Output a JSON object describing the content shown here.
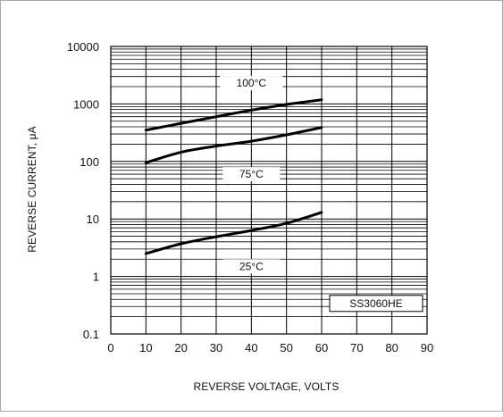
{
  "chart_data": {
    "type": "line",
    "xlabel": "REVERSE VOLTAGE, VOLTS",
    "ylabel": "REVERSE CURRENT, μA",
    "xlim": [
      0,
      90
    ],
    "ylim": [
      0.1,
      10000
    ],
    "yscale": "log",
    "grid": true,
    "x_ticks": [
      "0",
      "10",
      "20",
      "30",
      "40",
      "50",
      "60",
      "70",
      "80",
      "90"
    ],
    "y_ticks": [
      "0.1",
      "1",
      "10",
      "100",
      "1000",
      "10000"
    ],
    "model_label": "SS3060HE",
    "series": [
      {
        "name": "100°C",
        "points": [
          [
            10,
            350
          ],
          [
            20,
            460
          ],
          [
            30,
            600
          ],
          [
            40,
            780
          ],
          [
            50,
            980
          ],
          [
            60,
            1180
          ]
        ]
      },
      {
        "name": "75°C",
        "points": [
          [
            10,
            95
          ],
          [
            20,
            145
          ],
          [
            30,
            185
          ],
          [
            40,
            225
          ],
          [
            50,
            290
          ],
          [
            60,
            390
          ]
        ]
      },
      {
        "name": "25°C",
        "points": [
          [
            10,
            2.5
          ],
          [
            20,
            3.7
          ],
          [
            30,
            4.9
          ],
          [
            40,
            6.3
          ],
          [
            50,
            8.4
          ],
          [
            60,
            13
          ]
        ]
      }
    ]
  }
}
